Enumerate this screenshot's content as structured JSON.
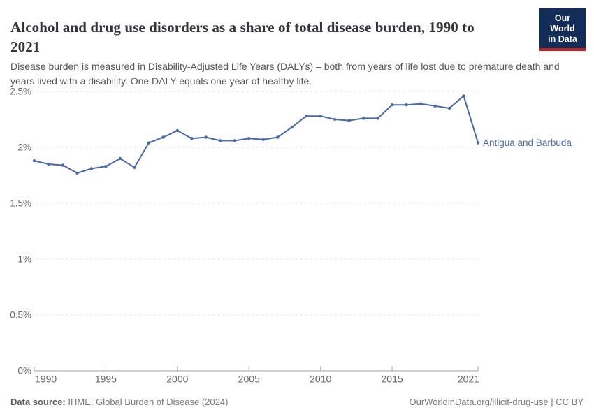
{
  "header": {
    "title": "Alcohol and drug use disorders as a share of total disease burden, 1990 to 2021",
    "subtitle": "Disease burden is measured in Disability-Adjusted Life Years (DALYs) – both from years of life lost due to premature death and years lived with a disability. One DALY equals one year of healthy life."
  },
  "logo": {
    "line1": "Our World",
    "line2": "in Data",
    "background": "#132d59",
    "accent": "#bf2125"
  },
  "chart_data": {
    "type": "line",
    "title": "Alcohol and drug use disorders as a share of total disease burden, 1990 to 2021",
    "unit": "%",
    "x": [
      1990,
      1991,
      1992,
      1993,
      1994,
      1995,
      1996,
      1997,
      1998,
      1999,
      2000,
      2001,
      2002,
      2003,
      2004,
      2005,
      2006,
      2007,
      2008,
      2009,
      2010,
      2011,
      2012,
      2013,
      2014,
      2015,
      2016,
      2017,
      2018,
      2019,
      2020,
      2021
    ],
    "series": [
      {
        "name": "Antigua and Barbuda",
        "color": "#4a69a5",
        "values": [
          1.88,
          1.85,
          1.84,
          1.77,
          1.81,
          1.83,
          1.9,
          1.82,
          2.04,
          2.09,
          2.15,
          2.08,
          2.09,
          2.06,
          2.06,
          2.08,
          2.07,
          2.09,
          2.18,
          2.28,
          2.28,
          2.25,
          2.24,
          2.26,
          2.26,
          2.38,
          2.38,
          2.39,
          2.37,
          2.35,
          2.46,
          2.04
        ]
      }
    ],
    "x_ticks": [
      1990,
      1995,
      2000,
      2005,
      2010,
      2015,
      2021
    ],
    "y_ticks": [
      {
        "value": 0,
        "label": "0%"
      },
      {
        "value": 0.5,
        "label": "0.5%"
      },
      {
        "value": 1,
        "label": "1%"
      },
      {
        "value": 1.5,
        "label": "1.5%"
      },
      {
        "value": 2,
        "label": "2%"
      },
      {
        "value": 2.5,
        "label": "2.5%"
      }
    ],
    "xlim": [
      1990,
      2021
    ],
    "ylim": [
      0,
      2.5
    ],
    "grid": "horizontal-dashed",
    "legend": "inline-entity-label"
  },
  "colors": {
    "grid": "#e2e2e2",
    "axis": "#a3a3a3",
    "tick_label": "#666666"
  },
  "footer": {
    "source_label": "Data source:",
    "source_text": "IHME, Global Burden of Disease (2024)",
    "credit": "OurWorldinData.org/illicit-drug-use | CC BY"
  }
}
